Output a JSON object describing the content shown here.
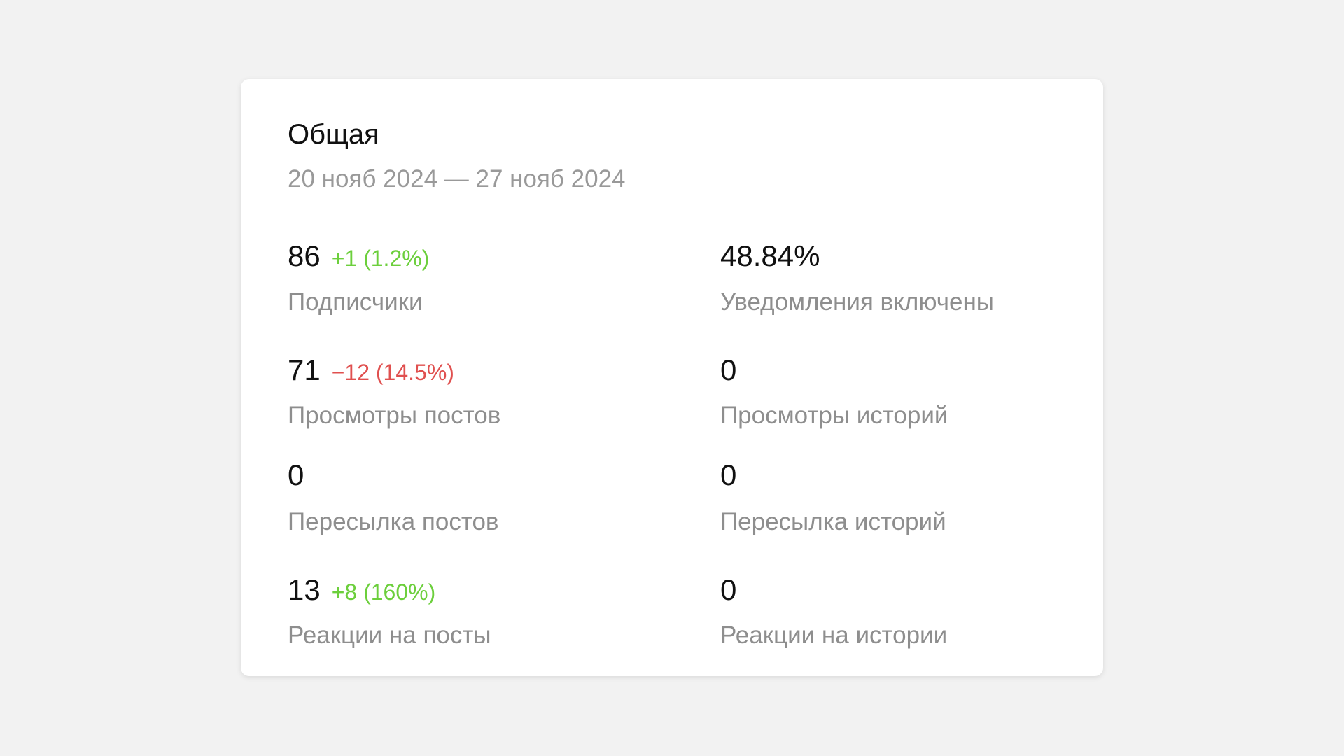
{
  "card": {
    "title": "Общая",
    "date_range": "20 нояб 2024 — 27 нояб 2024",
    "colors": {
      "positive": "#6ccf3c",
      "negative": "#e0504f",
      "label": "#8e8e8e"
    },
    "stats": [
      {
        "value": "86",
        "delta": "+1 (1.2%)",
        "trend": "up",
        "label": "Подписчики"
      },
      {
        "value": "48.84%",
        "delta": "",
        "trend": "",
        "label": "Уведомления включены"
      },
      {
        "value": "71",
        "delta": "−12 (14.5%)",
        "trend": "down",
        "label": "Просмотры постов"
      },
      {
        "value": "0",
        "delta": "",
        "trend": "",
        "label": "Просмотры историй"
      },
      {
        "value": "0",
        "delta": "",
        "trend": "",
        "label": "Пересылка постов"
      },
      {
        "value": "0",
        "delta": "",
        "trend": "",
        "label": "Пересылка историй"
      },
      {
        "value": "13",
        "delta": "+8 (160%)",
        "trend": "up",
        "label": "Реакции на посты"
      },
      {
        "value": "0",
        "delta": "",
        "trend": "",
        "label": "Реакции на истории"
      }
    ]
  }
}
